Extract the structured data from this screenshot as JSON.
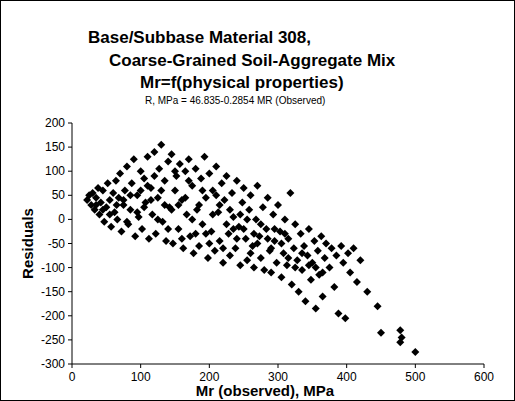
{
  "chart_data": {
    "type": "scatter",
    "title": [
      "Base/Subbase Material 308,",
      "Coarse-Grained Soil-Aggregate Mix",
      "Mr=f(physical properties)"
    ],
    "subtitle": "R, MPa = 46.835-0.2854 MR (Observed)",
    "x_label": "Mr (observed), MPa",
    "y_label": "Residuals",
    "color": "#000000",
    "marker": "diamond",
    "xlim": [
      0,
      600
    ],
    "ylim": [
      -300,
      200
    ],
    "xticks": [
      0,
      100,
      200,
      300,
      400,
      500,
      600
    ],
    "yticks": [
      200,
      150,
      100,
      50,
      0,
      -50,
      -100,
      -150,
      -200,
      -250,
      -300
    ],
    "x": [
      22,
      25,
      28,
      30,
      33,
      35,
      38,
      40,
      42,
      45,
      47,
      50,
      52,
      55,
      57,
      60,
      62,
      64,
      66,
      68,
      70,
      72,
      75,
      77,
      80,
      82,
      85,
      87,
      90,
      92,
      95,
      97,
      100,
      102,
      105,
      107,
      110,
      112,
      115,
      117,
      120,
      122,
      125,
      127,
      130,
      132,
      135,
      137,
      140,
      142,
      145,
      147,
      150,
      152,
      155,
      157,
      160,
      162,
      165,
      167,
      170,
      172,
      175,
      177,
      180,
      182,
      185,
      188,
      190,
      193,
      195,
      198,
      200,
      203,
      205,
      208,
      210,
      213,
      215,
      218,
      220,
      222,
      225,
      228,
      230,
      233,
      235,
      238,
      240,
      243,
      245,
      248,
      250,
      253,
      255,
      258,
      260,
      263,
      265,
      268,
      270,
      273,
      275,
      278,
      280,
      283,
      285,
      288,
      290,
      293,
      295,
      298,
      300,
      303,
      305,
      308,
      310,
      313,
      315,
      318,
      320,
      323,
      325,
      328,
      330,
      333,
      335,
      338,
      340,
      343,
      345,
      348,
      350,
      353,
      355,
      358,
      360,
      363,
      365,
      368,
      370,
      375,
      378,
      382,
      385,
      388,
      392,
      395,
      398,
      402,
      405,
      410,
      415,
      420,
      430,
      445,
      450,
      478,
      478,
      480,
      500,
      35,
      45,
      55,
      65,
      75,
      85,
      95,
      105,
      115,
      125,
      135,
      145,
      155,
      165,
      175,
      185,
      195,
      205,
      215,
      225,
      235,
      245,
      255,
      265,
      275,
      285,
      295,
      305,
      315,
      325,
      335,
      345,
      355,
      365,
      110,
      130,
      150,
      170,
      190,
      210,
      230,
      250,
      270,
      290,
      310,
      80,
      100,
      120,
      140,
      160,
      180,
      200,
      220,
      240,
      260
    ],
    "values": [
      40,
      50,
      30,
      55,
      20,
      45,
      65,
      10,
      35,
      60,
      -5,
      25,
      75,
      40,
      -15,
      55,
      15,
      80,
      0,
      45,
      95,
      -25,
      30,
      60,
      110,
      -10,
      20,
      75,
      125,
      -35,
      50,
      5,
      100,
      -20,
      85,
      35,
      130,
      -40,
      65,
      10,
      140,
      -30,
      45,
      105,
      155,
      -5,
      80,
      -45,
      120,
      25,
      135,
      -50,
      60,
      90,
      -20,
      115,
      40,
      -60,
      100,
      10,
      125,
      -35,
      70,
      -70,
      105,
      20,
      -55,
      85,
      -10,
      130,
      45,
      -80,
      95,
      -25,
      60,
      -65,
      110,
      15,
      -45,
      75,
      -90,
      40,
      90,
      -30,
      -75,
      55,
      5,
      -60,
      80,
      -15,
      -95,
      35,
      65,
      -40,
      -85,
      20,
      50,
      -55,
      -100,
      0,
      70,
      -35,
      -80,
      25,
      -105,
      -20,
      45,
      -65,
      -110,
      10,
      -45,
      -90,
      30,
      -25,
      -120,
      -70,
      0,
      -95,
      -40,
      55,
      -135,
      -60,
      -10,
      -85,
      -150,
      -30,
      -105,
      -55,
      -170,
      -75,
      -20,
      -125,
      -90,
      -45,
      -185,
      -65,
      -115,
      -35,
      -160,
      -80,
      -50,
      -100,
      -60,
      -140,
      -75,
      -195,
      -55,
      -90,
      -205,
      -70,
      -110,
      -60,
      -130,
      -85,
      -150,
      -180,
      -235,
      -230,
      -255,
      -245,
      -275,
      30,
      20,
      10,
      30,
      40,
      50,
      15,
      25,
      40,
      0,
      30,
      20,
      30,
      45,
      0,
      30,
      -30,
      10,
      30,
      -10,
      -20,
      10,
      0,
      -30,
      -10,
      -40,
      -20,
      -50,
      -80,
      -100,
      -70,
      -95,
      -100,
      -110,
      70,
      60,
      100,
      80,
      60,
      50,
      20,
      -20,
      -50,
      -60,
      -30,
      -5,
      60,
      90,
      -20,
      -40,
      -30,
      -50,
      -60,
      -40,
      -70
    ]
  }
}
